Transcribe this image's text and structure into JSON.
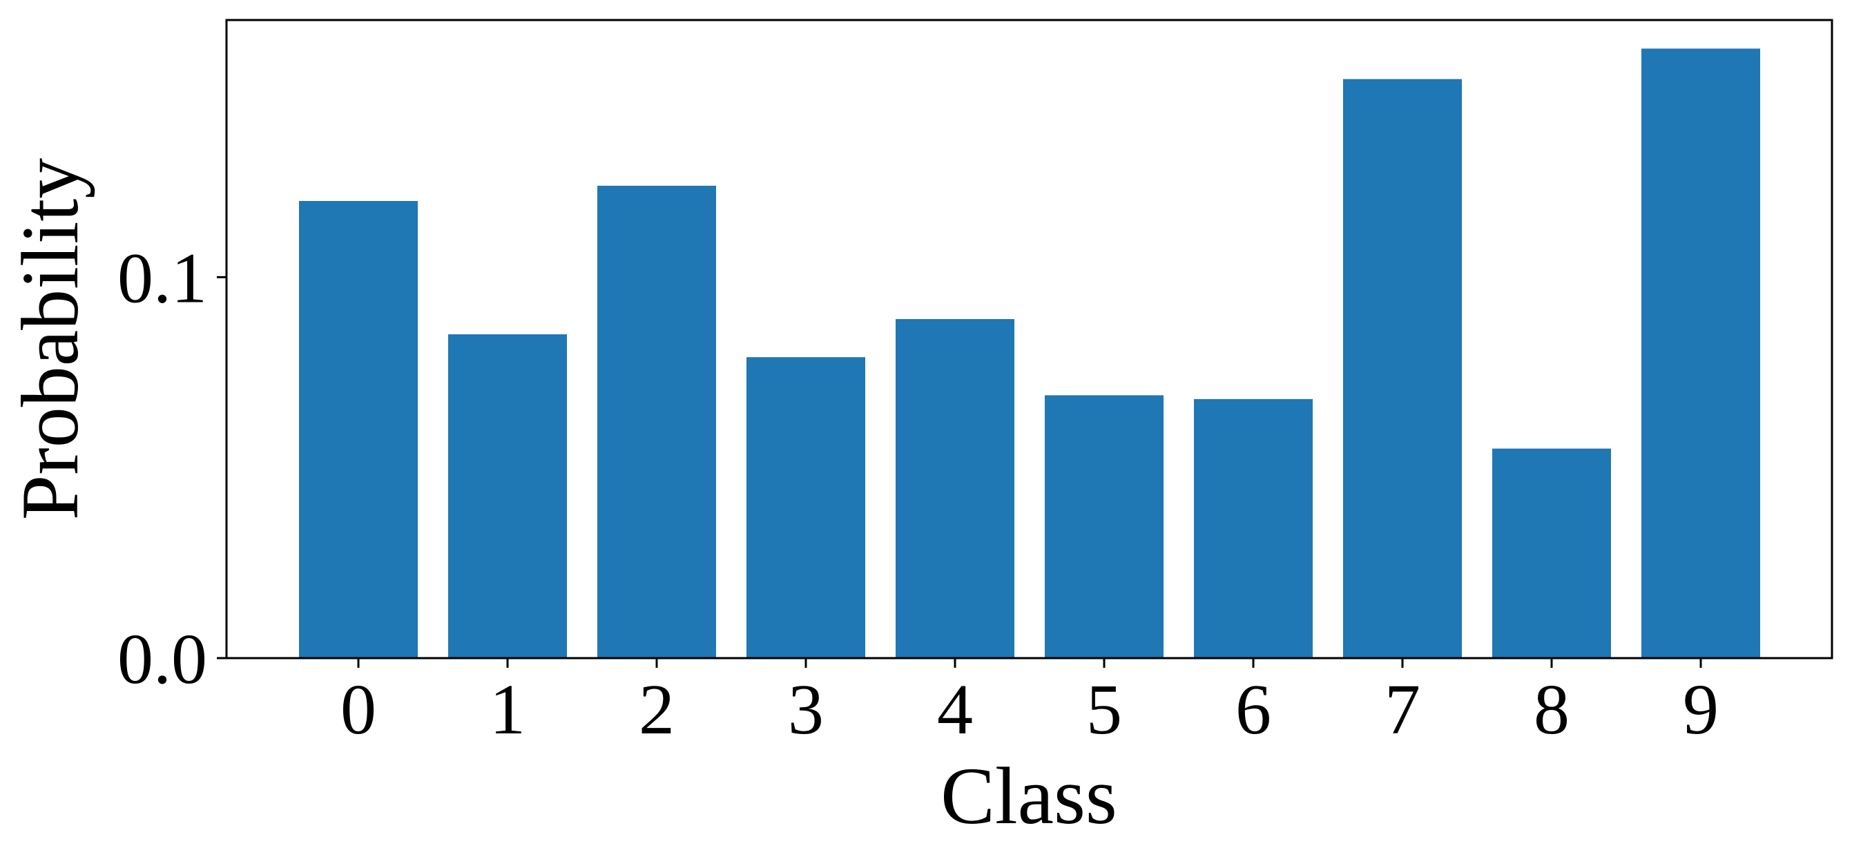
{
  "chart_data": {
    "type": "bar",
    "categories": [
      "0",
      "1",
      "2",
      "3",
      "4",
      "5",
      "6",
      "7",
      "8",
      "9"
    ],
    "values": [
      0.12,
      0.085,
      0.124,
      0.079,
      0.089,
      0.069,
      0.068,
      0.152,
      0.055,
      0.16
    ],
    "xlabel": "Class",
    "ylabel": "Probability",
    "ylim": [
      0,
      0.1675
    ],
    "yticks": [
      0.0,
      0.1
    ],
    "ytick_labels": [
      "0.0",
      "0.1"
    ],
    "bar_color": "#1f77b4",
    "grid": false,
    "legend": "none"
  }
}
